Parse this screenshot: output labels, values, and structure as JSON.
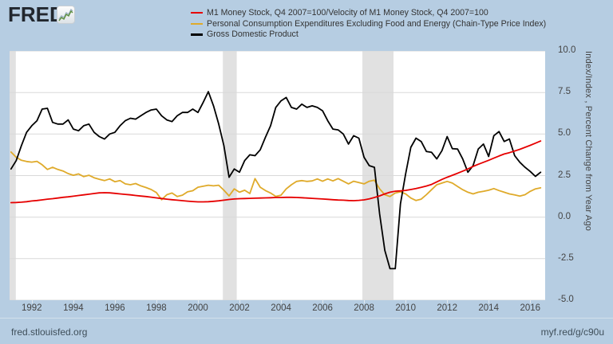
{
  "header": {
    "logo_text": "FRED",
    "logo_reg": "®"
  },
  "legend": [
    {
      "label": "M1 Money Stock, Q4 2007=100/Velocity of M1 Money Stock, Q4 2007=100",
      "color": "#e60000"
    },
    {
      "label": "Personal Consumption Expenditures Excluding Food and Energy (Chain-Type Price Index)",
      "color": "#dfaa2a"
    },
    {
      "label": "Gross Domestic Product",
      "color": "#000000"
    }
  ],
  "footer": {
    "left": "fred.stlouisfed.org",
    "right": "myf.red/g/c90u"
  },
  "chart_data": {
    "type": "line",
    "title": "",
    "y_axis_label": "Index/Index , Percent Change from Year Ago",
    "xlim": [
      1990.93,
      2016.72
    ],
    "ylim": [
      -5,
      10
    ],
    "grid": "horizontal-only",
    "legend_position": "top",
    "x_start": 1991.0,
    "x_step": 0.25,
    "x_ticks": [
      1992,
      1994,
      1996,
      1998,
      2000,
      2002,
      2004,
      2006,
      2008,
      2010,
      2012,
      2014,
      2016
    ],
    "y_ticks": [
      10.0,
      7.5,
      5.0,
      2.5,
      0.0,
      -2.5,
      -5.0
    ],
    "y_tick_labels": [
      "10.0",
      "7.5",
      "5.0",
      "2.5",
      "0.0",
      "-2.5",
      "-5.0"
    ],
    "recession_bands": [
      [
        1990.93,
        1991.23
      ],
      [
        2001.2,
        2001.87
      ],
      [
        2007.92,
        2009.42
      ]
    ],
    "draw_order": [
      1,
      2,
      0
    ],
    "colors": {
      "grid": "#d9d9d9",
      "recession": "#e1e1e1",
      "plot_bg": "#ffffff",
      "background": "#b6cde2"
    },
    "series": [
      {
        "name": "M1 Money Stock, Q4 2007=100/Velocity of M1 Money Stock, Q4 2007=100",
        "id": "m1-velocity-ratio",
        "color": "#e60000",
        "values": [
          0.87,
          0.88,
          0.9,
          0.93,
          0.97,
          1.0,
          1.04,
          1.08,
          1.11,
          1.15,
          1.19,
          1.22,
          1.26,
          1.3,
          1.34,
          1.38,
          1.42,
          1.46,
          1.47,
          1.46,
          1.43,
          1.4,
          1.37,
          1.34,
          1.3,
          1.27,
          1.24,
          1.2,
          1.16,
          1.12,
          1.08,
          1.05,
          1.02,
          0.99,
          0.96,
          0.94,
          0.92,
          0.92,
          0.93,
          0.95,
          0.98,
          1.02,
          1.06,
          1.09,
          1.11,
          1.12,
          1.13,
          1.14,
          1.15,
          1.16,
          1.17,
          1.18,
          1.18,
          1.19,
          1.19,
          1.18,
          1.17,
          1.15,
          1.13,
          1.11,
          1.09,
          1.07,
          1.05,
          1.03,
          1.02,
          1.0,
          0.99,
          1.01,
          1.04,
          1.1,
          1.18,
          1.28,
          1.4,
          1.5,
          1.56,
          1.58,
          1.61,
          1.66,
          1.72,
          1.79,
          1.87,
          1.97,
          2.12,
          2.27,
          2.4,
          2.52,
          2.64,
          2.77,
          2.9,
          3.05,
          3.18,
          3.3,
          3.42,
          3.55,
          3.68,
          3.8,
          3.88,
          3.98,
          4.08,
          4.2,
          4.32,
          4.45,
          4.58
        ]
      },
      {
        "name": "Personal Consumption Expenditures Excluding Food and Energy (Chain-Type Price Index)",
        "id": "core-pce",
        "color": "#dfaa2a",
        "values": [
          3.92,
          3.6,
          3.42,
          3.35,
          3.31,
          3.36,
          3.15,
          2.87,
          3.0,
          2.87,
          2.78,
          2.62,
          2.52,
          2.6,
          2.44,
          2.52,
          2.37,
          2.28,
          2.2,
          2.3,
          2.13,
          2.2,
          2.0,
          1.95,
          2.02,
          1.88,
          1.78,
          1.66,
          1.48,
          1.05,
          1.35,
          1.45,
          1.24,
          1.32,
          1.52,
          1.59,
          1.8,
          1.86,
          1.92,
          1.88,
          1.92,
          1.62,
          1.28,
          1.7,
          1.5,
          1.62,
          1.42,
          2.32,
          1.8,
          1.6,
          1.45,
          1.25,
          1.32,
          1.7,
          1.95,
          2.15,
          2.2,
          2.15,
          2.18,
          2.3,
          2.16,
          2.3,
          2.18,
          2.32,
          2.16,
          2.0,
          2.16,
          2.08,
          2.0,
          2.16,
          2.22,
          1.7,
          1.35,
          1.24,
          1.45,
          1.52,
          1.4,
          1.15,
          1.0,
          1.08,
          1.35,
          1.65,
          1.95,
          2.05,
          2.15,
          2.05,
          1.85,
          1.65,
          1.5,
          1.4,
          1.5,
          1.55,
          1.62,
          1.72,
          1.6,
          1.5,
          1.4,
          1.34,
          1.27,
          1.35,
          1.55,
          1.7,
          1.76
        ]
      },
      {
        "name": "Gross Domestic Product",
        "id": "gdp",
        "color": "#000000",
        "values": [
          2.9,
          3.4,
          4.3,
          5.1,
          5.5,
          5.8,
          6.5,
          6.55,
          5.7,
          5.6,
          5.6,
          5.85,
          5.3,
          5.2,
          5.5,
          5.6,
          5.1,
          4.85,
          4.7,
          5.0,
          5.1,
          5.5,
          5.8,
          5.95,
          5.9,
          6.1,
          6.3,
          6.45,
          6.5,
          6.1,
          5.85,
          5.75,
          6.1,
          6.3,
          6.3,
          6.5,
          6.3,
          6.9,
          7.55,
          6.7,
          5.6,
          4.3,
          2.4,
          2.9,
          2.7,
          3.4,
          3.75,
          3.7,
          4.05,
          4.8,
          5.5,
          6.6,
          7.0,
          7.2,
          6.6,
          6.5,
          6.8,
          6.6,
          6.7,
          6.6,
          6.4,
          5.8,
          5.3,
          5.25,
          5.0,
          4.4,
          4.9,
          4.75,
          3.6,
          3.1,
          3.0,
          0.2,
          -2.0,
          -3.1,
          -3.1,
          0.8,
          2.6,
          4.2,
          4.75,
          4.55,
          3.95,
          3.9,
          3.5,
          4.0,
          4.85,
          4.12,
          4.1,
          3.5,
          2.7,
          3.1,
          4.1,
          4.4,
          3.65,
          4.9,
          5.15,
          4.55,
          4.7,
          3.7,
          3.3,
          3.0,
          2.75,
          2.45,
          2.7
        ]
      }
    ]
  }
}
